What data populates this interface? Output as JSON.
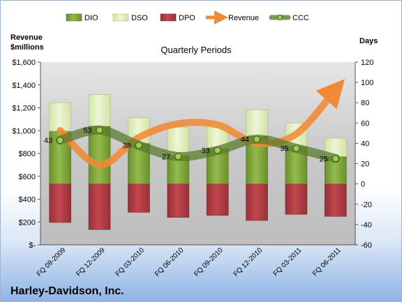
{
  "chart_data": {
    "type": "bar",
    "title": "Quarterly Periods",
    "company": "Harley-Davidson, Inc.",
    "left_axis_label": [
      "Revenue",
      "$millions"
    ],
    "right_axis_label": "Days",
    "left_axis": {
      "range": [
        0,
        1600
      ],
      "ticks": [
        0,
        200,
        400,
        600,
        800,
        1000,
        1200,
        1400,
        1600
      ],
      "tick_labels": [
        "$-",
        "$200",
        "$400",
        "$600",
        "$800",
        "$1,000",
        "$1,200",
        "$1,400",
        "$1,600"
      ]
    },
    "right_axis": {
      "range": [
        -60,
        120
      ],
      "ticks": [
        -60,
        -40,
        -20,
        0,
        20,
        40,
        60,
        80,
        100,
        120
      ],
      "tick_labels": [
        "-60",
        "-40",
        "-20",
        "0",
        "20",
        "40",
        "60",
        "80",
        "100",
        "120"
      ]
    },
    "categories": [
      "FQ 09-2009",
      "FQ 12-2009",
      "FQ 03-2010",
      "FQ 06-2010",
      "FQ 09-2010",
      "FQ 12-2010",
      "FQ 03-2011",
      "FQ 06-2011"
    ],
    "series": [
      {
        "name": "DIO",
        "axis": "right",
        "color": "#7ea33c",
        "values": [
          52,
          57,
          40,
          28,
          35,
          47,
          37,
          27
        ]
      },
      {
        "name": "DSO",
        "axis": "right",
        "color": "#e2efc0",
        "values": [
          28,
          31,
          25,
          28,
          24,
          26,
          23,
          18
        ]
      },
      {
        "name": "DPO",
        "axis": "right",
        "color": "#b03a3f",
        "values": [
          -38,
          -45,
          -28,
          -33,
          -31,
          -36,
          -30,
          -32
        ]
      },
      {
        "name": "Revenue",
        "axis": "left",
        "color": "#f08a36",
        "values": [
          1000,
          700,
          940,
          1060,
          1050,
          890,
          970,
          1360
        ]
      },
      {
        "name": "CCC",
        "axis": "right",
        "color": "#5b7a2e",
        "values": [
          43,
          53,
          38,
          27,
          33,
          44,
          35,
          25
        ]
      }
    ],
    "data_labels": [
      "43",
      "53",
      "38",
      "27",
      "33",
      "44",
      "35",
      "25"
    ],
    "legend_position": "top"
  }
}
